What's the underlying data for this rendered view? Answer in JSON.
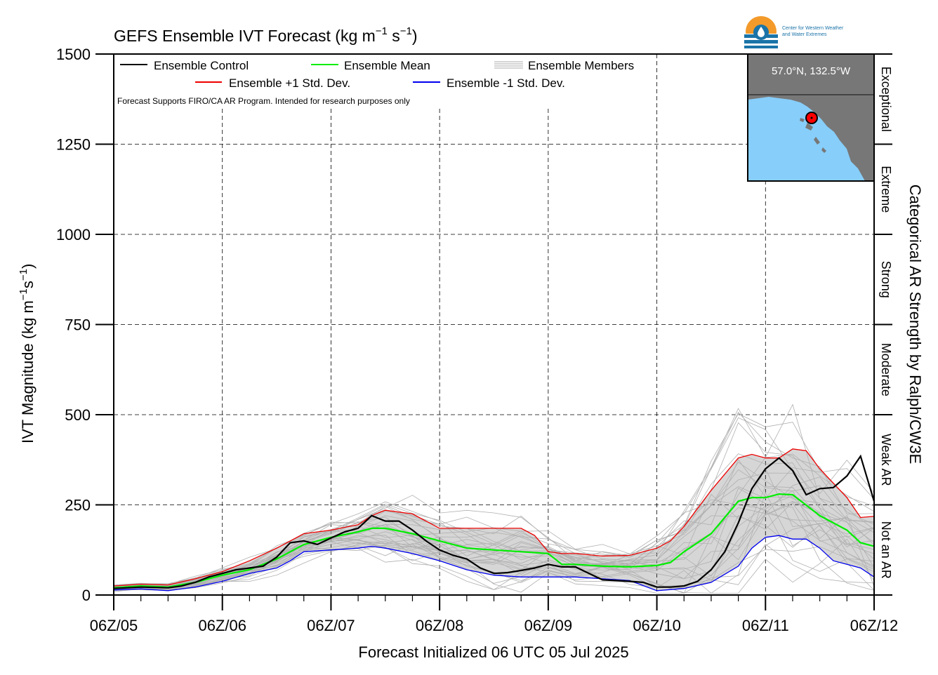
{
  "chart_data": {
    "type": "line",
    "title": "GEFS Ensemble IVT Forecast (kg m",
    "title_sup1": "−1",
    "title_mid": " s",
    "title_sup2": "−1",
    "title_end": ")",
    "ylabel": "IVT Magnitude (kg m",
    "ylabel_sup1": "−1",
    "ylabel_mid": "s",
    "ylabel_sup2": "−1",
    "ylabel_end": ")",
    "xlabel": "Forecast Initialized 06 UTC 05 Jul 2025",
    "right_label": "Categorical AR Strength by Ralph/CW3E",
    "note": "Forecast Supports FIRO/CA AR Program. Intended for research purposes only",
    "logo_text": [
      "Center for Western Weather",
      "and Water Extremes"
    ],
    "location": "57.0°N, 132.5°W",
    "xlim": [
      0,
      168
    ],
    "ylim": [
      0,
      1500
    ],
    "yticks": [
      0,
      250,
      500,
      750,
      1000,
      1250,
      1500
    ],
    "xtick_labels": [
      "06Z/05",
      "06Z/06",
      "06Z/07",
      "06Z/08",
      "06Z/09",
      "06Z/10",
      "06Z/11",
      "06Z/12"
    ],
    "categories": [
      {
        "name": "Not an AR",
        "range": [
          0,
          250
        ]
      },
      {
        "name": "Weak AR",
        "range": [
          250,
          500
        ]
      },
      {
        "name": "Moderate",
        "range": [
          500,
          750
        ]
      },
      {
        "name": "Strong",
        "range": [
          750,
          1000
        ]
      },
      {
        "name": "Extreme",
        "range": [
          1000,
          1250
        ]
      },
      {
        "name": "Exceptional",
        "range": [
          1250,
          1500
        ]
      }
    ],
    "legend": [
      {
        "name": "Ensemble Control",
        "color": "#000000"
      },
      {
        "name": "Ensemble Mean",
        "color": "#00ee00"
      },
      {
        "name": "Ensemble Members",
        "color": "#aaaaaa"
      },
      {
        "name": "Ensemble +1 Std. Dev.",
        "color": "#ee0000"
      },
      {
        "name": "Ensemble -1 Std. Dev.",
        "color": "#0000ee"
      }
    ],
    "x": [
      0,
      6,
      12,
      18,
      24,
      30,
      36,
      42,
      48,
      54,
      60,
      66,
      72,
      78,
      84,
      90,
      96,
      102,
      108,
      114,
      120,
      126,
      132,
      138,
      144,
      150,
      156,
      162,
      168
    ],
    "series": [
      {
        "name": "Ensemble Control",
        "color": "#000000",
        "values": [
          [
            0,
            18
          ],
          [
            6,
            22
          ],
          [
            12,
            20
          ],
          [
            15,
            25
          ],
          [
            18,
            35
          ],
          [
            21,
            50
          ],
          [
            24,
            60
          ],
          [
            27,
            70
          ],
          [
            30,
            75
          ],
          [
            33,
            80
          ],
          [
            36,
            105
          ],
          [
            39,
            145
          ],
          [
            42,
            150
          ],
          [
            45,
            140
          ],
          [
            48,
            158
          ],
          [
            51,
            175
          ],
          [
            54,
            185
          ],
          [
            57,
            220
          ],
          [
            60,
            205
          ],
          [
            63,
            205
          ],
          [
            66,
            180
          ],
          [
            69,
            150
          ],
          [
            72,
            125
          ],
          [
            75,
            110
          ],
          [
            78,
            100
          ],
          [
            81,
            75
          ],
          [
            84,
            60
          ],
          [
            87,
            62
          ],
          [
            90,
            68
          ],
          [
            93,
            75
          ],
          [
            96,
            85
          ],
          [
            99,
            78
          ],
          [
            102,
            78
          ],
          [
            105,
            60
          ],
          [
            108,
            42
          ],
          [
            111,
            40
          ],
          [
            114,
            38
          ],
          [
            117,
            35
          ],
          [
            120,
            22
          ],
          [
            123,
            22
          ],
          [
            126,
            25
          ],
          [
            129,
            38
          ],
          [
            132,
            70
          ],
          [
            135,
            120
          ],
          [
            138,
            200
          ],
          [
            141,
            295
          ],
          [
            144,
            350
          ],
          [
            147,
            380
          ],
          [
            150,
            345
          ],
          [
            153,
            278
          ],
          [
            156,
            295
          ],
          [
            159,
            298
          ],
          [
            162,
            330
          ],
          [
            165,
            385
          ],
          [
            168,
            260
          ]
        ]
      },
      {
        "name": "Ensemble Mean",
        "color": "#00ee00",
        "values": [
          [
            0,
            20
          ],
          [
            6,
            25
          ],
          [
            12,
            22
          ],
          [
            18,
            35
          ],
          [
            24,
            55
          ],
          [
            30,
            70
          ],
          [
            36,
            100
          ],
          [
            42,
            140
          ],
          [
            48,
            160
          ],
          [
            54,
            175
          ],
          [
            57,
            185
          ],
          [
            60,
            185
          ],
          [
            66,
            170
          ],
          [
            72,
            150
          ],
          [
            78,
            130
          ],
          [
            84,
            125
          ],
          [
            90,
            120
          ],
          [
            96,
            115
          ],
          [
            99,
            85
          ],
          [
            102,
            85
          ],
          [
            108,
            80
          ],
          [
            114,
            78
          ],
          [
            120,
            82
          ],
          [
            123,
            90
          ],
          [
            126,
            120
          ],
          [
            132,
            170
          ],
          [
            138,
            260
          ],
          [
            141,
            270
          ],
          [
            144,
            270
          ],
          [
            147,
            280
          ],
          [
            150,
            278
          ],
          [
            156,
            220
          ],
          [
            162,
            180
          ],
          [
            165,
            145
          ],
          [
            168,
            135
          ]
        ]
      },
      {
        "name": "Ensemble +1 Std. Dev.",
        "color": "#ee0000",
        "values": [
          [
            0,
            25
          ],
          [
            6,
            30
          ],
          [
            12,
            28
          ],
          [
            18,
            45
          ],
          [
            24,
            65
          ],
          [
            30,
            95
          ],
          [
            36,
            130
          ],
          [
            42,
            170
          ],
          [
            48,
            180
          ],
          [
            54,
            195
          ],
          [
            57,
            220
          ],
          [
            60,
            235
          ],
          [
            66,
            225
          ],
          [
            72,
            185
          ],
          [
            78,
            185
          ],
          [
            84,
            185
          ],
          [
            90,
            185
          ],
          [
            93,
            165
          ],
          [
            96,
            120
          ],
          [
            99,
            115
          ],
          [
            102,
            115
          ],
          [
            108,
            108
          ],
          [
            114,
            110
          ],
          [
            120,
            130
          ],
          [
            123,
            150
          ],
          [
            126,
            190
          ],
          [
            132,
            290
          ],
          [
            138,
            380
          ],
          [
            141,
            390
          ],
          [
            144,
            380
          ],
          [
            147,
            380
          ],
          [
            150,
            405
          ],
          [
            153,
            400
          ],
          [
            156,
            350
          ],
          [
            162,
            270
          ],
          [
            165,
            215
          ],
          [
            168,
            218
          ]
        ]
      },
      {
        "name": "Ensemble -1 Std. Dev.",
        "color": "#0000ee",
        "values": [
          [
            0,
            14
          ],
          [
            6,
            17
          ],
          [
            12,
            12
          ],
          [
            18,
            22
          ],
          [
            24,
            38
          ],
          [
            30,
            60
          ],
          [
            36,
            75
          ],
          [
            39,
            95
          ],
          [
            42,
            120
          ],
          [
            48,
            125
          ],
          [
            54,
            130
          ],
          [
            57,
            135
          ],
          [
            60,
            130
          ],
          [
            66,
            115
          ],
          [
            72,
            95
          ],
          [
            78,
            70
          ],
          [
            84,
            55
          ],
          [
            90,
            50
          ],
          [
            96,
            50
          ],
          [
            102,
            50
          ],
          [
            108,
            45
          ],
          [
            114,
            40
          ],
          [
            120,
            12
          ],
          [
            126,
            18
          ],
          [
            132,
            35
          ],
          [
            138,
            80
          ],
          [
            141,
            130
          ],
          [
            144,
            160
          ],
          [
            147,
            165
          ],
          [
            150,
            155
          ],
          [
            153,
            155
          ],
          [
            156,
            130
          ],
          [
            159,
            95
          ],
          [
            162,
            85
          ],
          [
            165,
            75
          ],
          [
            168,
            50
          ]
        ]
      }
    ]
  }
}
